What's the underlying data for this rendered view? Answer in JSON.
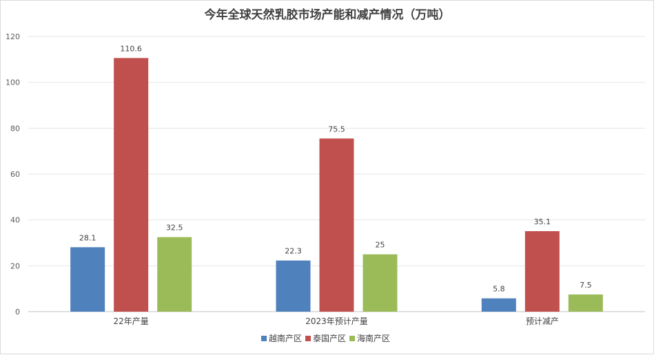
{
  "chart_data": {
    "type": "bar",
    "title": "今年全球天然乳胶市场产能和减产情况（万吨）",
    "categories": [
      "22年产量",
      "2023年预计产量",
      "预计减产"
    ],
    "series": [
      {
        "name": "越南产区",
        "color": "#4f81bd",
        "values": [
          28.1,
          22.3,
          5.8
        ]
      },
      {
        "name": "泰国产区",
        "color": "#c0504d",
        "values": [
          110.6,
          75.5,
          35.1
        ]
      },
      {
        "name": "海南产区",
        "color": "#9bbb59",
        "values": [
          32.5,
          25,
          7.5
        ]
      }
    ],
    "ylim": [
      0,
      120
    ],
    "yticks": [
      0,
      20,
      40,
      60,
      80,
      100,
      120
    ],
    "grid": true,
    "legend": "bottom",
    "xlabel": "",
    "ylabel": ""
  }
}
